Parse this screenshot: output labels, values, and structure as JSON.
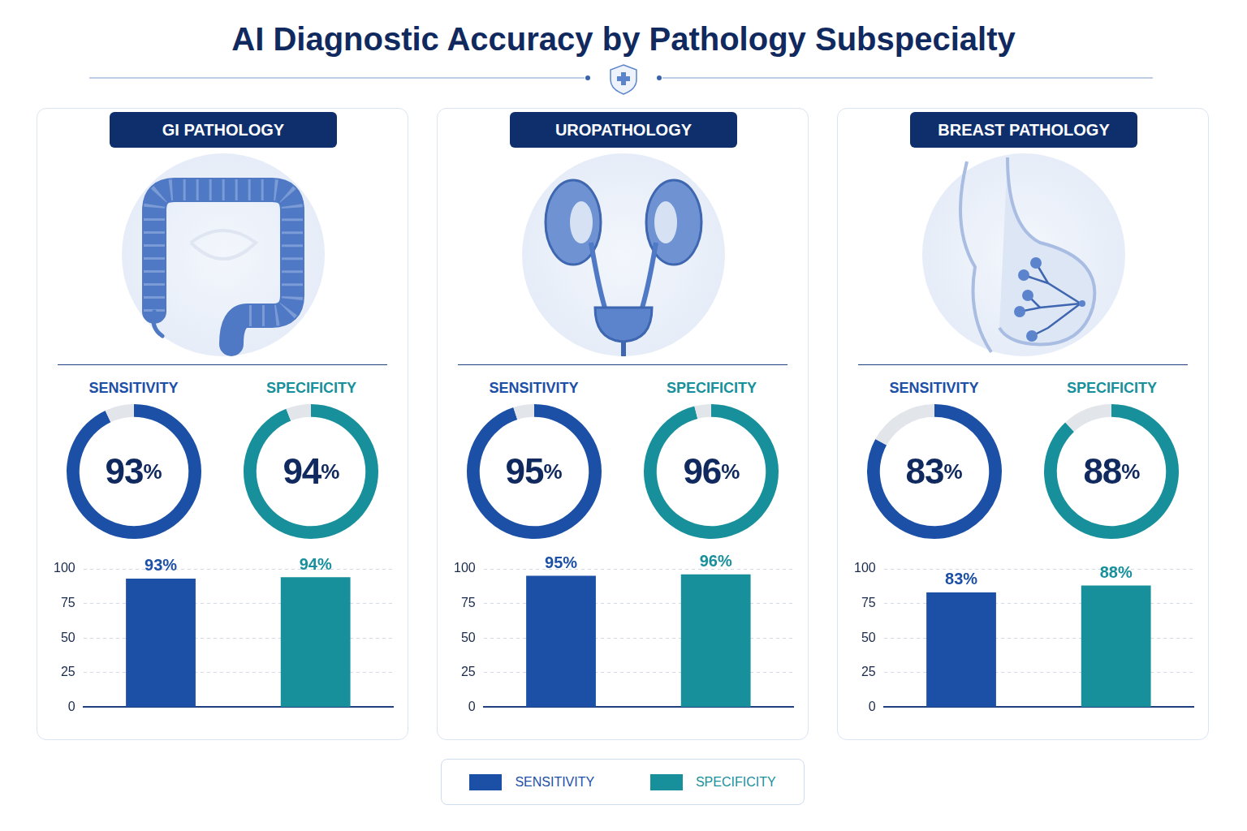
{
  "title": "AI Diagnostic Accuracy by Pathology Subspecialty",
  "legend": "bottom",
  "chart_data": [
    {
      "type": "bar",
      "title": "GI PATHOLOGY",
      "categories": [
        null
      ],
      "series": [
        {
          "name": "SENSITIVITY",
          "color": "#1c4fa6",
          "values": [
            93
          ],
          "value_labels": [
            "93%"
          ]
        },
        {
          "name": "SPECIFICITY",
          "color": "#17909b",
          "values": [
            94
          ],
          "value_labels": [
            "94%"
          ]
        }
      ],
      "ylim": [
        0,
        100
      ],
      "yticks": [
        0,
        25,
        50,
        75,
        100
      ],
      "grid": true,
      "data_labels": true,
      "tick_labels": "y"
    },
    {
      "type": "bar",
      "title": "UROPATHOLOGY",
      "categories": [
        null
      ],
      "series": [
        {
          "name": "SENSITIVITY",
          "color": "#1c4fa6",
          "values": [
            95
          ],
          "value_labels": [
            "95%"
          ]
        },
        {
          "name": "SPECIFICITY",
          "color": "#17909b",
          "values": [
            96
          ],
          "value_labels": [
            "96%"
          ]
        }
      ],
      "ylim": [
        0,
        100
      ],
      "yticks": [
        0,
        25,
        50,
        75,
        100
      ],
      "grid": true,
      "data_labels": true,
      "tick_labels": "y"
    },
    {
      "type": "bar",
      "title": "BREAST PATHOLOGY",
      "categories": [
        null
      ],
      "series": [
        {
          "name": "SENSITIVITY",
          "color": "#1c4fa6",
          "values": [
            83
          ],
          "value_labels": [
            "83%"
          ]
        },
        {
          "name": "SPECIFICITY",
          "color": "#17909b",
          "values": [
            88
          ],
          "value_labels": [
            "88%"
          ]
        }
      ],
      "ylim": [
        0,
        100
      ],
      "yticks": [
        0,
        25,
        50,
        75,
        100
      ],
      "grid": true,
      "data_labels": true,
      "tick_labels": "y"
    }
  ]
}
